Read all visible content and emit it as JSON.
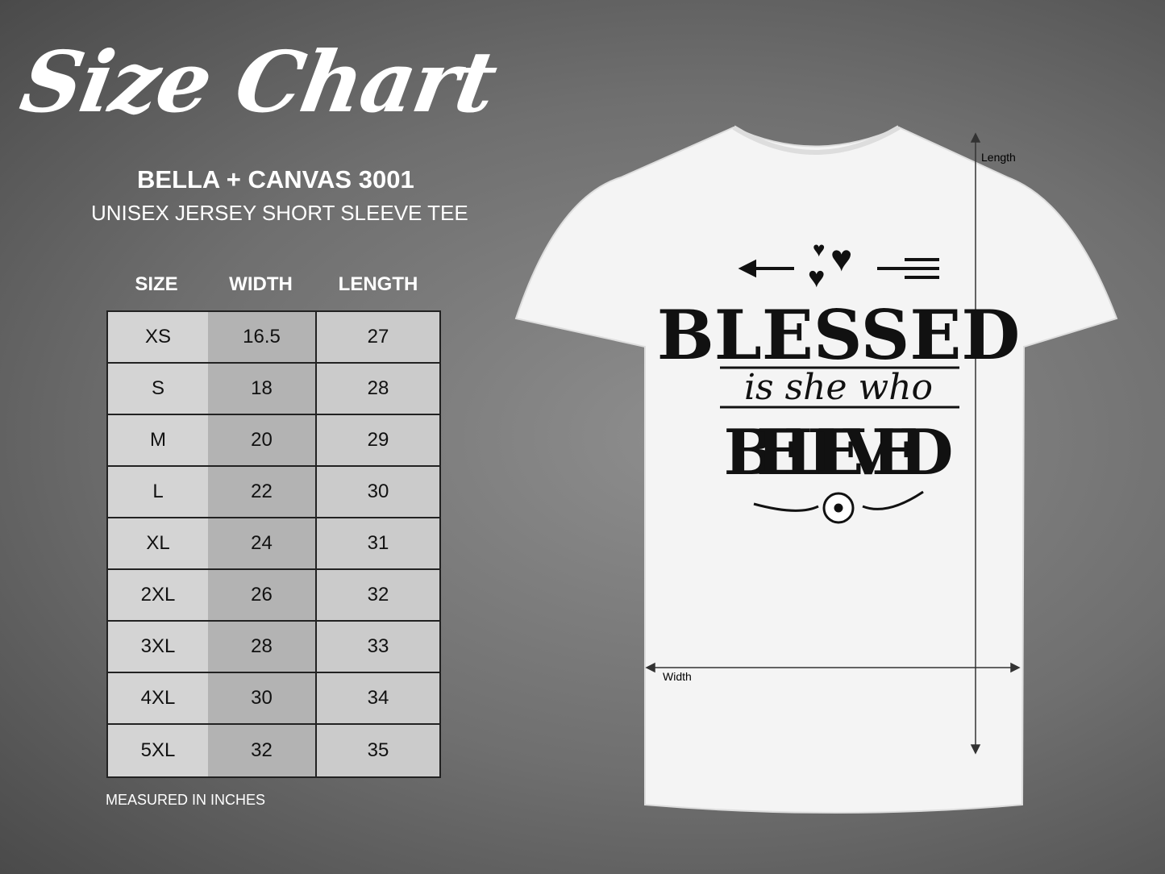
{
  "title": "Size Chart",
  "brand": "BELLA + CANVAS 3001",
  "subtitle": "UNISEX JERSEY SHORT SLEEVE TEE",
  "table": {
    "headers": [
      "SIZE",
      "WIDTH",
      "LENGTH"
    ],
    "rows": [
      [
        "XS",
        "16.5",
        "27"
      ],
      [
        "S",
        "18",
        "28"
      ],
      [
        "M",
        "20",
        "29"
      ],
      [
        "L",
        "22",
        "30"
      ],
      [
        "XL",
        "24",
        "31"
      ],
      [
        "2XL",
        "26",
        "32"
      ],
      [
        "3XL",
        "28",
        "33"
      ],
      [
        "4XL",
        "30",
        "34"
      ],
      [
        "5XL",
        "32",
        "35"
      ]
    ]
  },
  "note": "MEASURED IN INCHES",
  "shirt": {
    "color": "#f4f4f4",
    "design_text": [
      "BLESSED",
      "is she who",
      "BELIEVED"
    ],
    "length_label": "Length",
    "width_label": "Width"
  }
}
